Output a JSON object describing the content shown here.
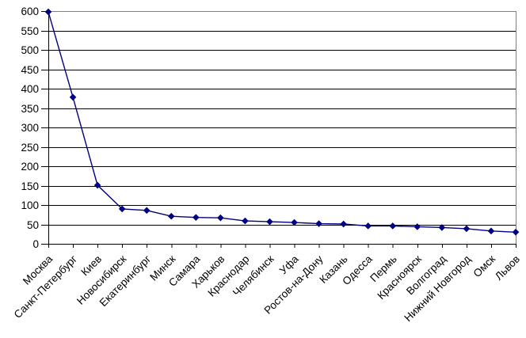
{
  "chart_data": {
    "type": "line",
    "title": "",
    "xlabel": "",
    "ylabel": "",
    "categories": [
      "Москва",
      "Санкт-Петербург",
      "Киев",
      "Новосибирск",
      "Екатеринбург",
      "Минск",
      "Самара",
      "Харьков",
      "Краснодар",
      "Челябинск",
      "Уфа",
      "Ростов-на-Дону",
      "Казань",
      "Одесса",
      "Пермь",
      "Красноярск",
      "Волгоград",
      "Нижний Новгород",
      "Омск",
      "Львов"
    ],
    "values": [
      598,
      378,
      151,
      90,
      86,
      71,
      68,
      67,
      59,
      57,
      55,
      52,
      51,
      46,
      46,
      44,
      42,
      39,
      33,
      30
    ],
    "ylim": [
      0,
      600
    ],
    "ytick_step": 50,
    "ytick_labels": [
      "0",
      "50",
      "100",
      "150",
      "200",
      "250",
      "300",
      "350",
      "400",
      "450",
      "500",
      "550",
      "600"
    ],
    "grid": true,
    "legend": "none",
    "marker": "diamond",
    "x_label_rotation_deg": -45,
    "colors": {
      "series_line": "#000080",
      "marker_fill": "#000080",
      "gridline": "#000000",
      "axis": "#000000",
      "plot_border": "#808080",
      "background": "#ffffff",
      "label_text": "#000000"
    }
  }
}
